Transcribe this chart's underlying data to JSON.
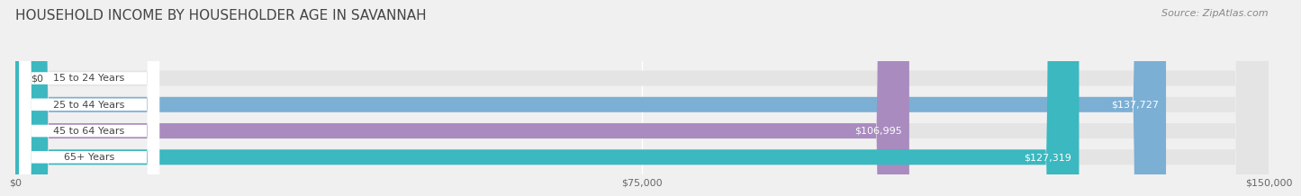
{
  "title": "HOUSEHOLD INCOME BY HOUSEHOLDER AGE IN SAVANNAH",
  "source": "Source: ZipAtlas.com",
  "categories": [
    "15 to 24 Years",
    "25 to 44 Years",
    "45 to 64 Years",
    "65+ Years"
  ],
  "values": [
    0,
    137727,
    106995,
    127319
  ],
  "bar_colors": [
    "#e8a0a0",
    "#7bafd4",
    "#a98bbf",
    "#3bb8c0"
  ],
  "background_color": "#f0f0f0",
  "bar_bg_color": "#e4e4e4",
  "xlim": [
    0,
    150000
  ],
  "xticks": [
    0,
    75000,
    150000
  ],
  "xtick_labels": [
    "$0",
    "$75,000",
    "$150,000"
  ],
  "label_text_color": "#444444",
  "value_text_color_inside": "#ffffff",
  "value_text_color_outside": "#444444",
  "bar_height": 0.58,
  "title_fontsize": 11,
  "source_fontsize": 8,
  "label_fontsize": 8,
  "value_fontsize": 8,
  "tick_fontsize": 8
}
